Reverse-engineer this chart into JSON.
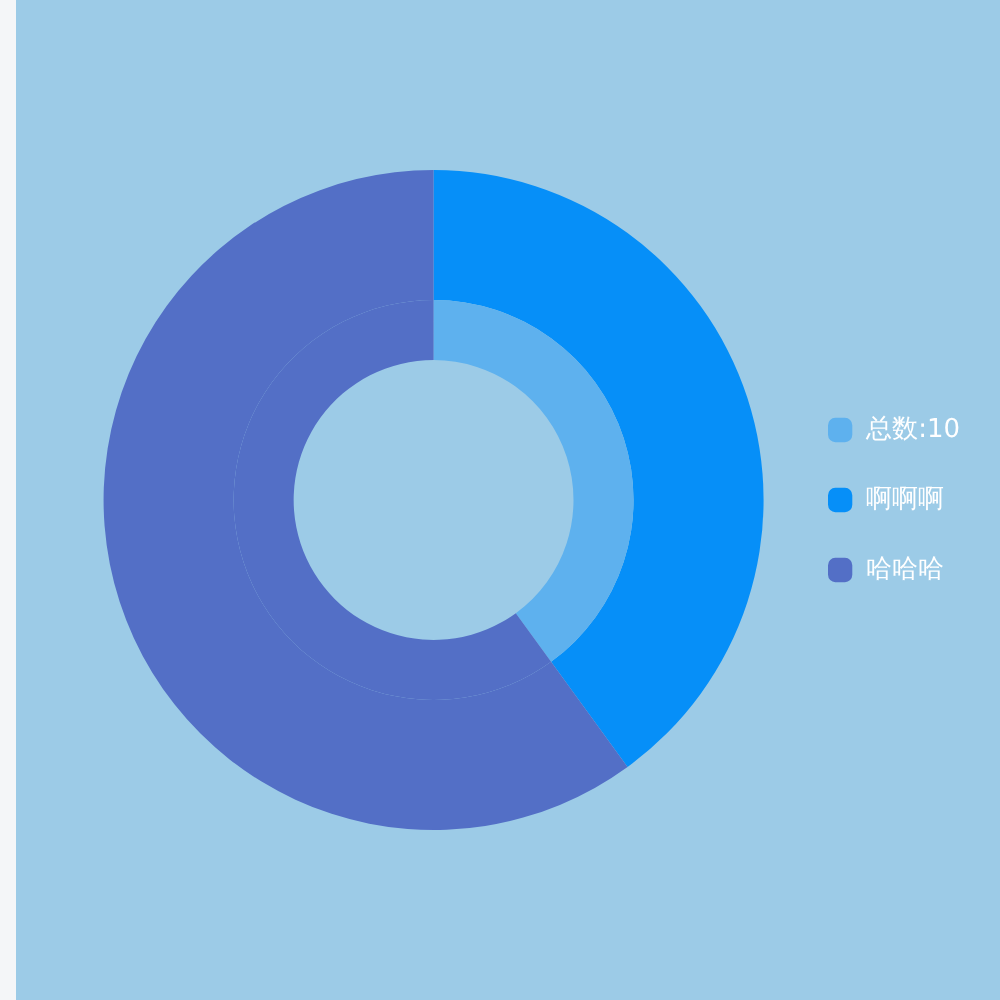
{
  "chart_data": {
    "type": "donut",
    "categories": [
      "总数:10",
      "啊啊啊",
      "哈哈哈"
    ],
    "colors": [
      "#5eb1ee",
      "#068ff8",
      "#536fc6"
    ],
    "series": [
      {
        "values": [
          null,
          40,
          60
        ]
      },
      {
        "values": [
          40,
          null,
          60
        ]
      }
    ],
    "legend": "right"
  }
}
